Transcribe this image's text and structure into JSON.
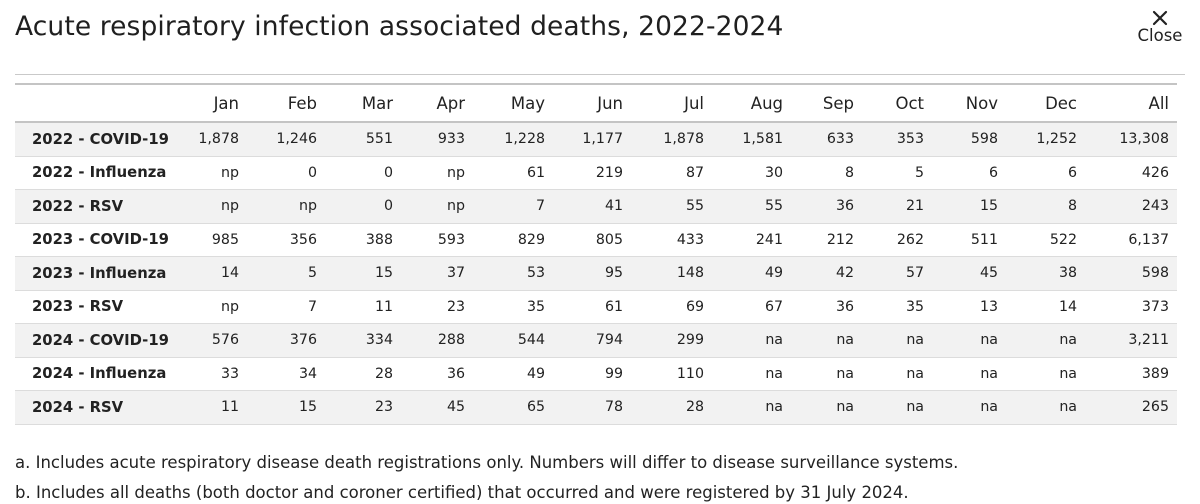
{
  "dialog": {
    "title": "Acute respiratory infection associated deaths, 2022-2024",
    "close_label": "Close",
    "close_icon": "close-icon"
  },
  "table": {
    "columns": [
      "Jan",
      "Feb",
      "Mar",
      "Apr",
      "May",
      "Jun",
      "Jul",
      "Aug",
      "Sep",
      "Oct",
      "Nov",
      "Dec",
      "All"
    ],
    "rows": [
      {
        "label": "2022 - COVID-19",
        "values": [
          "1,878",
          "1,246",
          "551",
          "933",
          "1,228",
          "1,177",
          "1,878",
          "1,581",
          "633",
          "353",
          "598",
          "1,252",
          "13,308"
        ]
      },
      {
        "label": "2022 - Influenza",
        "values": [
          "np",
          "0",
          "0",
          "np",
          "61",
          "219",
          "87",
          "30",
          "8",
          "5",
          "6",
          "6",
          "426"
        ]
      },
      {
        "label": "2022 - RSV",
        "values": [
          "np",
          "np",
          "0",
          "np",
          "7",
          "41",
          "55",
          "55",
          "36",
          "21",
          "15",
          "8",
          "243"
        ]
      },
      {
        "label": "2023 - COVID-19",
        "values": [
          "985",
          "356",
          "388",
          "593",
          "829",
          "805",
          "433",
          "241",
          "212",
          "262",
          "511",
          "522",
          "6,137"
        ]
      },
      {
        "label": "2023 - Influenza",
        "values": [
          "14",
          "5",
          "15",
          "37",
          "53",
          "95",
          "148",
          "49",
          "42",
          "57",
          "45",
          "38",
          "598"
        ]
      },
      {
        "label": "2023 - RSV",
        "values": [
          "np",
          "7",
          "11",
          "23",
          "35",
          "61",
          "69",
          "67",
          "36",
          "35",
          "13",
          "14",
          "373"
        ]
      },
      {
        "label": "2024 - COVID-19",
        "values": [
          "576",
          "376",
          "334",
          "288",
          "544",
          "794",
          "299",
          "na",
          "na",
          "na",
          "na",
          "na",
          "3,211"
        ]
      },
      {
        "label": "2024 - Influenza",
        "values": [
          "33",
          "34",
          "28",
          "36",
          "49",
          "99",
          "110",
          "na",
          "na",
          "na",
          "na",
          "na",
          "389"
        ]
      },
      {
        "label": "2024 - RSV",
        "values": [
          "11",
          "15",
          "23",
          "45",
          "65",
          "78",
          "28",
          "na",
          "na",
          "na",
          "na",
          "na",
          "265"
        ]
      }
    ]
  },
  "notes": [
    "a. Includes acute respiratory disease death registrations only. Numbers will differ to disease surveillance systems.",
    "b. Includes all deaths (both doctor and coroner certified) that occurred and were registered by 31 July 2024."
  ],
  "colors": {
    "row_stripe": "#f2f2f2",
    "rule": "#c4c4c4",
    "text": "#222222"
  }
}
